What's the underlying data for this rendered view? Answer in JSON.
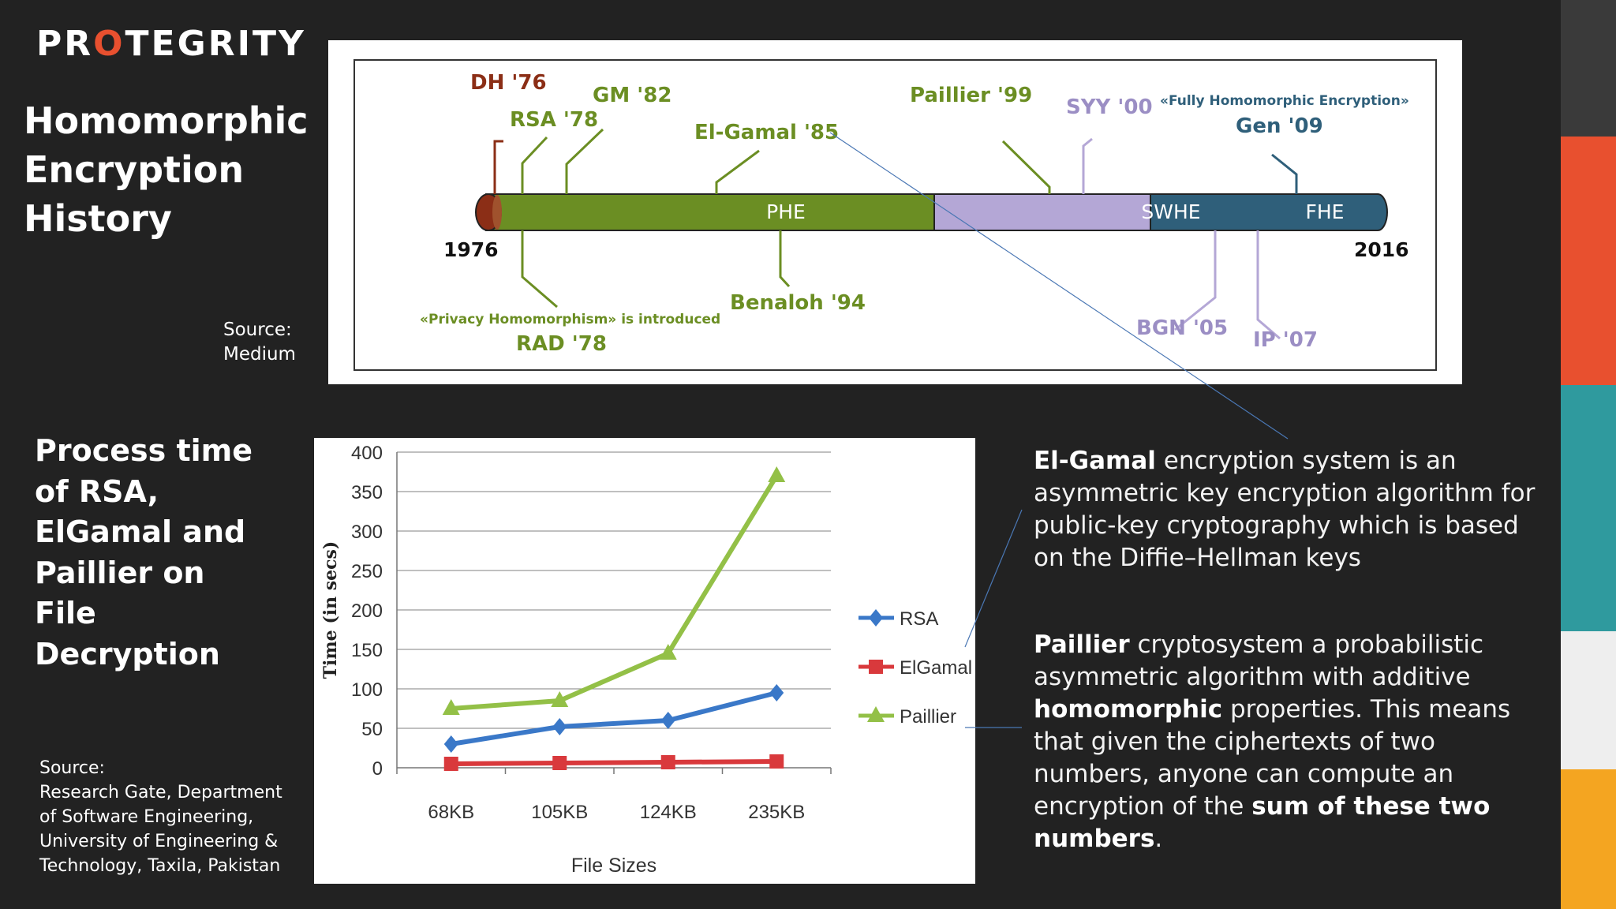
{
  "logo": {
    "before": "PR",
    "o": "O",
    "after": "TEGRITY"
  },
  "title_history": [
    "Homomorphic",
    "Encryption",
    "History"
  ],
  "source1": {
    "label": "Source:",
    "value": "Medium"
  },
  "title_process": "Process time of RSA, ElGamal and Paillier on File Decryption",
  "source2": {
    "label": "Source:",
    "lines": [
      "Research Gate, Department",
      "of Software Engineering,",
      "University of Engineering &",
      "Technology, Taxila, Pakistan"
    ]
  },
  "timeline": {
    "start_year": "1976",
    "end_year": "2016",
    "segments": [
      "PHE",
      "SWHE",
      "FHE"
    ],
    "events_above": [
      "DH '76",
      "RSA '78",
      "GM '82",
      "El-Gamal '85",
      "Paillier '99",
      "SYY '00",
      "Gen '09"
    ],
    "fhe_note": "«Fully Homomorphic Encryption»",
    "events_below": [
      "RAD '78",
      "Benaloh '94",
      "BGN '05",
      "IP '07"
    ],
    "privacy_note": "«Privacy Homomorphism» is introduced",
    "colors": {
      "phe": "#6b8e23",
      "swhe": "#b4a7d6",
      "fhe": "#2f5f7a",
      "dh": "#8b2e16"
    }
  },
  "chart_data": {
    "type": "line",
    "categories": [
      "68KB",
      "105KB",
      "124KB",
      "235KB"
    ],
    "series": [
      {
        "name": "RSA",
        "values": [
          30,
          52,
          60,
          95
        ],
        "color": "#3a78c8",
        "marker": "diamond"
      },
      {
        "name": "ElGamal",
        "values": [
          5,
          6,
          7,
          8
        ],
        "color": "#d9393c",
        "marker": "square"
      },
      {
        "name": "Paillier",
        "values": [
          75,
          85,
          145,
          370
        ],
        "color": "#93c047",
        "marker": "triangle"
      }
    ],
    "xlabel": "File Sizes",
    "ylabel": "Time (in secs)",
    "ylim": [
      0,
      400
    ],
    "yticks": [
      "0",
      "50",
      "100",
      "150",
      "200",
      "250",
      "300",
      "350",
      "400"
    ],
    "grid": true,
    "legend": "right"
  },
  "desc_elgamal": {
    "bold": "El-Gamal",
    "text": " encryption system is an asymmetric key encryption algorithm for public-key cryptography which is based on the Diffie–Hellman keys"
  },
  "desc_paillier": {
    "bold1": "Paillier",
    "text1": " cryptosystem a probabilistic asymmetric algorithm with additive ",
    "bold2": "homomorphic",
    "text2": " properties. This means that given the ciphertexts of two numbers, anyone can compute an encryption of the ",
    "bold3": "sum of these two numbers",
    "text3": "."
  },
  "strip_colors": [
    "#3a3a3a",
    "#e8502f",
    "#2f9a9e",
    "#eeeeee",
    "#f4a521"
  ]
}
